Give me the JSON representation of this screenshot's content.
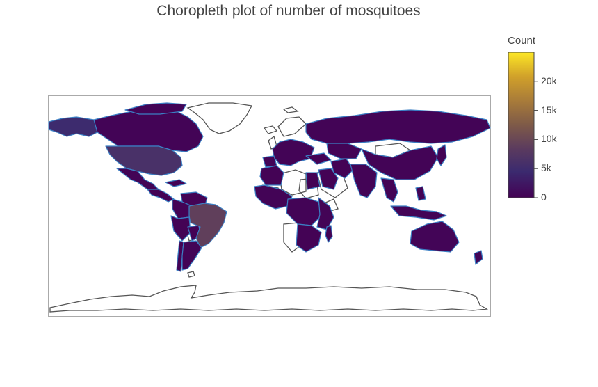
{
  "title": "Choropleth plot of number of mosquitoes",
  "colorbar": {
    "title": "Count",
    "min": 0,
    "max": 25000,
    "ticks": [
      {
        "value": 20000,
        "label": "20k"
      },
      {
        "value": 15000,
        "label": "15k"
      },
      {
        "value": 10000,
        "label": "10k"
      },
      {
        "value": 5000,
        "label": "5k"
      },
      {
        "value": 0,
        "label": "0"
      }
    ],
    "colorscale": [
      "#440154",
      "#3b2a6f",
      "#5a3a5f",
      "#7e5a48",
      "#a77a3a",
      "#d0a02a",
      "#fde725"
    ]
  },
  "colors": {
    "land_border": "#3b7fc4",
    "no_data_outline": "#555555",
    "frame": "#555555"
  },
  "chart_data": {
    "type": "choropleth",
    "title": "Choropleth plot of number of mosquitoes",
    "colorbar_title": "Count",
    "zrange": [
      0,
      25000
    ],
    "regions": [
      {
        "name": "United States",
        "value": 6000
      },
      {
        "name": "Brazil",
        "value": 9000
      },
      {
        "name": "Alaska",
        "value": 4500
      },
      {
        "name": "Canada",
        "value": 300
      },
      {
        "name": "Mexico",
        "value": 300
      },
      {
        "name": "Central America",
        "value": 200
      },
      {
        "name": "Colombia",
        "value": 200
      },
      {
        "name": "Venezuela",
        "value": 200
      },
      {
        "name": "Peru",
        "value": 200
      },
      {
        "name": "Bolivia",
        "value": 200
      },
      {
        "name": "Argentina",
        "value": 300
      },
      {
        "name": "Chile",
        "value": 200
      },
      {
        "name": "Europe",
        "value": 300
      },
      {
        "name": "Algeria",
        "value": 200
      },
      {
        "name": "Egypt",
        "value": 200
      },
      {
        "name": "Saudi Arabia",
        "value": 200
      },
      {
        "name": "West Africa",
        "value": 300
      },
      {
        "name": "Central Africa",
        "value": 300
      },
      {
        "name": "East Africa",
        "value": 300
      },
      {
        "name": "Southern Africa",
        "value": 200
      },
      {
        "name": "Madagascar",
        "value": 200
      },
      {
        "name": "Russia",
        "value": 300
      },
      {
        "name": "Turkey",
        "value": 200
      },
      {
        "name": "Iran",
        "value": 200
      },
      {
        "name": "India",
        "value": 300
      },
      {
        "name": "China",
        "value": 300
      },
      {
        "name": "Japan",
        "value": 200
      },
      {
        "name": "Southeast Asia",
        "value": 300
      },
      {
        "name": "Indonesia",
        "value": 300
      },
      {
        "name": "Australia",
        "value": 400
      }
    ]
  }
}
